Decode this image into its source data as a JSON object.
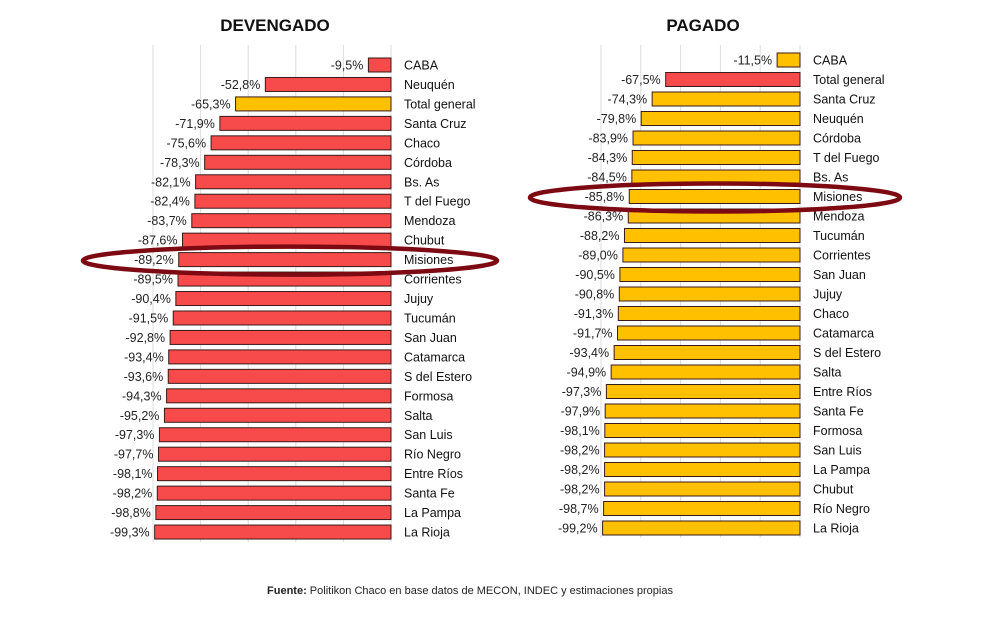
{
  "chart_data": [
    {
      "type": "bar",
      "orientation": "horizontal",
      "title": "DEVENGADO",
      "unit": "%",
      "xlim": [
        -100,
        0
      ],
      "grid": true,
      "categories": [
        "CABA",
        "Neuquén",
        "Total general",
        "Santa Cruz",
        "Chaco",
        "Córdoba",
        "Bs. As",
        "T del Fuego",
        "Mendoza",
        "Chubut",
        "Misiones",
        "Corrientes",
        "Jujuy",
        "Tucumán",
        "San Juan",
        "Catamarca",
        "S del Estero",
        "Formosa",
        "Salta",
        "San Luis",
        "Río Negro",
        "Entre Ríos",
        "Santa Fe",
        "La Pampa",
        "La Rioja"
      ],
      "values": [
        -9.5,
        -52.8,
        -65.3,
        -71.9,
        -75.6,
        -78.3,
        -82.1,
        -82.4,
        -83.7,
        -87.6,
        -89.2,
        -89.5,
        -90.4,
        -91.5,
        -92.8,
        -93.4,
        -93.6,
        -94.3,
        -95.2,
        -97.3,
        -97.7,
        -98.1,
        -98.2,
        -98.8,
        -99.3
      ],
      "labels": [
        "-9,5%",
        "-52,8%",
        "-65,3%",
        "-71,9%",
        "-75,6%",
        "-78,3%",
        "-82,1%",
        "-82,4%",
        "-83,7%",
        "-87,6%",
        "-89,2%",
        "-89,5%",
        "-90,4%",
        "-91,5%",
        "-92,8%",
        "-93,4%",
        "-93,6%",
        "-94,3%",
        "-95,2%",
        "-97,3%",
        "-97,7%",
        "-98,1%",
        "-98,2%",
        "-98,8%",
        "-99,3%"
      ],
      "highlight_total": "Total general",
      "circled": "Misiones",
      "bar_color": "#f74a4a",
      "total_color": "#ffc000"
    },
    {
      "type": "bar",
      "orientation": "horizontal",
      "title": "PAGADO",
      "unit": "%",
      "xlim": [
        -100,
        0
      ],
      "grid": true,
      "categories": [
        "CABA",
        "Total general",
        "Santa Cruz",
        "Neuquén",
        "Córdoba",
        "T del Fuego",
        "Bs. As",
        "Misiones",
        "Mendoza",
        "Tucumán",
        "Corrientes",
        "San Juan",
        "Jujuy",
        "Chaco",
        "Catamarca",
        "S del Estero",
        "Salta",
        "Entre Ríos",
        "Santa Fe",
        "Formosa",
        "San Luis",
        "La Pampa",
        "Chubut",
        "Río Negro",
        "La Rioja"
      ],
      "values": [
        -11.5,
        -67.5,
        -74.3,
        -79.8,
        -83.9,
        -84.3,
        -84.5,
        -85.8,
        -86.3,
        -88.2,
        -89.0,
        -90.5,
        -90.8,
        -91.3,
        -91.7,
        -93.4,
        -94.9,
        -97.3,
        -97.9,
        -98.1,
        -98.2,
        -98.2,
        -98.2,
        -98.7,
        -99.2
      ],
      "labels": [
        "-11,5%",
        "-67,5%",
        "-74,3%",
        "-79,8%",
        "-83,9%",
        "-84,3%",
        "-84,5%",
        "-85,8%",
        "-86,3%",
        "-88,2%",
        "-89,0%",
        "-90,5%",
        "-90,8%",
        "-91,3%",
        "-91,7%",
        "-93,4%",
        "-94,9%",
        "-97,3%",
        "-97,9%",
        "-98,1%",
        "-98,2%",
        "-98,2%",
        "-98,2%",
        "-98,7%",
        "-99,2%"
      ],
      "highlight_total": "Total general",
      "circled": "Misiones",
      "bar_color": "#ffc000",
      "total_color": "#f74a4a"
    }
  ],
  "footer": {
    "bold": "Fuente:",
    "text": " Politikon Chaco en base datos de MECON, INDEC y estimaciones propias"
  },
  "circle_color": "#7d0a12"
}
